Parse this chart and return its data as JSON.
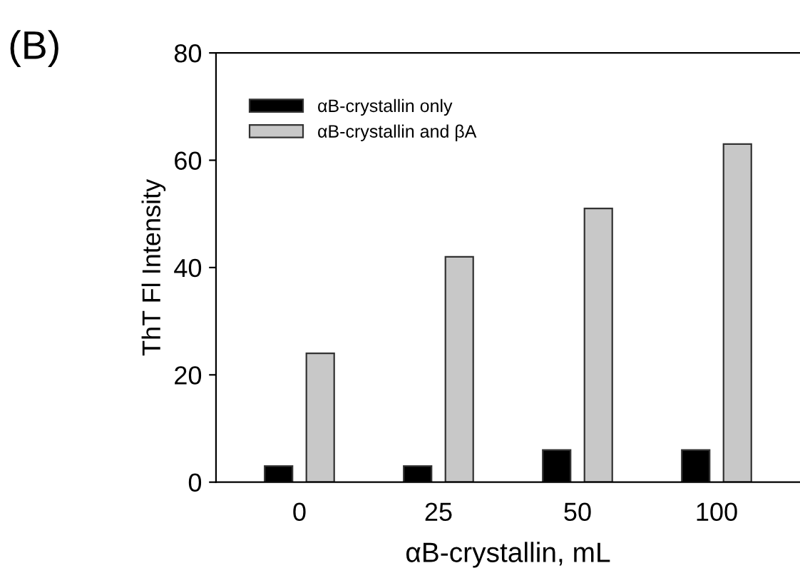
{
  "chart_data": {
    "type": "bar",
    "xlabel": "αB-crystallin, mL",
    "ylabel": "ThT Fl Intensity",
    "annotations": [
      "(B)"
    ],
    "categories": [
      "0",
      "25",
      "50",
      "100"
    ],
    "series": [
      {
        "name": "αB-crystallin only",
        "color": "#000000",
        "values": [
          3,
          3,
          6,
          6
        ]
      },
      {
        "name": "αB-crystallin and βA",
        "color": "#c8c8c8",
        "values": [
          24,
          42,
          51,
          63
        ]
      }
    ],
    "ylim": [
      0,
      80
    ],
    "yticks": [
      0,
      20,
      40,
      60,
      80
    ],
    "legend": "top left",
    "grid": false
  }
}
